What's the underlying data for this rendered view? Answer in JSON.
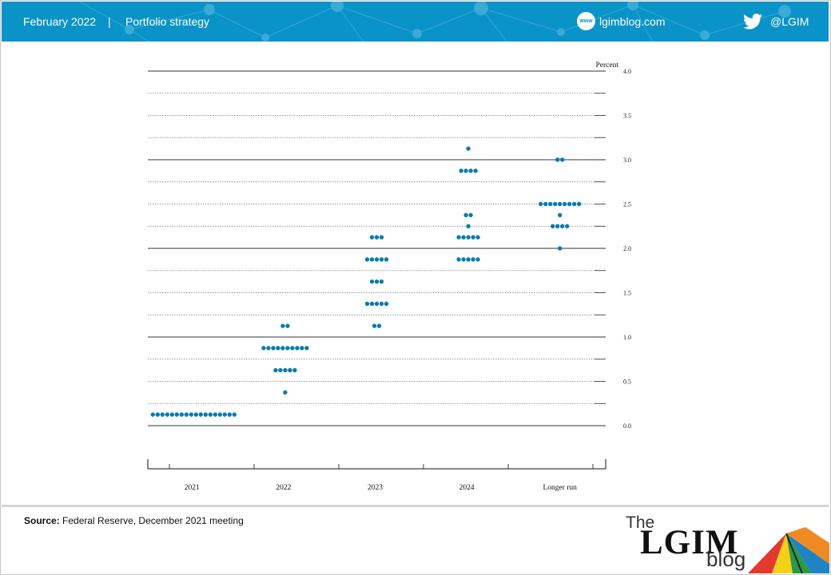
{
  "header": {
    "date": "February 2022",
    "separator": "|",
    "section": "Portfolio strategy",
    "www_badge": "www",
    "website": "lgimblog.com",
    "twitter_handle": "@LGIM",
    "background_color": "#0a93c8"
  },
  "chart_data": {
    "type": "scatter",
    "unit_label": "Percent",
    "categories": [
      "2021",
      "2022",
      "2023",
      "2024",
      "Longer run"
    ],
    "ylim": [
      0.0,
      4.0
    ],
    "y_ticks": [
      "0.0",
      "0.5",
      "1.0",
      "1.5",
      "2.0",
      "2.5",
      "3.0",
      "3.5",
      "4.0"
    ],
    "dot_color": "#0a7cb0",
    "series": [
      {
        "category": "2021",
        "dots": [
          {
            "y": 0.125,
            "count": 18
          }
        ]
      },
      {
        "category": "2022",
        "dots": [
          {
            "y": 0.375,
            "count": 1
          },
          {
            "y": 0.625,
            "count": 5
          },
          {
            "y": 0.875,
            "count": 10
          },
          {
            "y": 1.125,
            "count": 2
          }
        ]
      },
      {
        "category": "2023",
        "dots": [
          {
            "y": 1.125,
            "count": 2
          },
          {
            "y": 1.375,
            "count": 5
          },
          {
            "y": 1.625,
            "count": 3
          },
          {
            "y": 1.875,
            "count": 5
          },
          {
            "y": 2.125,
            "count": 3
          }
        ]
      },
      {
        "category": "2024",
        "dots": [
          {
            "y": 1.875,
            "count": 5
          },
          {
            "y": 2.125,
            "count": 5
          },
          {
            "y": 2.25,
            "count": 1
          },
          {
            "y": 2.375,
            "count": 2
          },
          {
            "y": 2.875,
            "count": 4
          },
          {
            "y": 3.125,
            "count": 1
          }
        ]
      },
      {
        "category": "Longer run",
        "dots": [
          {
            "y": 2.0,
            "count": 1
          },
          {
            "y": 2.25,
            "count": 4
          },
          {
            "y": 2.375,
            "count": 1
          },
          {
            "y": 2.5,
            "count": 9
          },
          {
            "y": 3.0,
            "count": 2
          }
        ]
      }
    ]
  },
  "footer": {
    "source_label": "Source:",
    "source_text": "Federal Reserve, December 2021 meeting",
    "logo": {
      "the": "The",
      "lgim": "LGIM",
      "blog": "blog"
    }
  }
}
